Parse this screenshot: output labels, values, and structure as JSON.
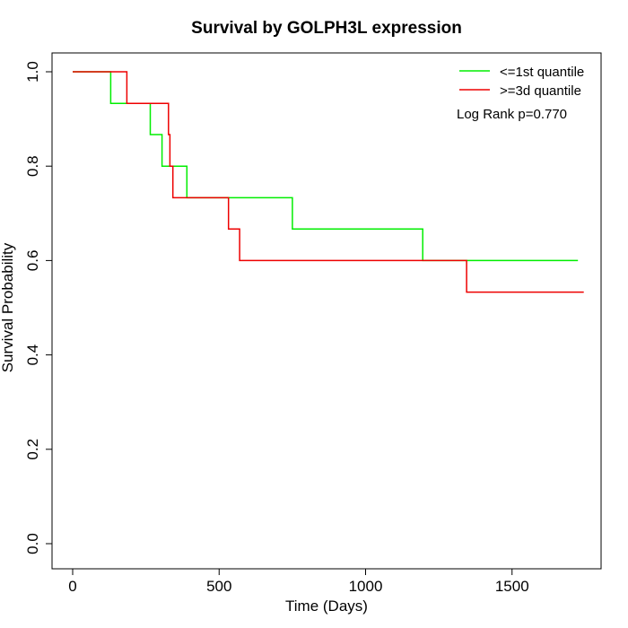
{
  "chart_data": {
    "type": "line",
    "step": true,
    "title": "Survival by GOLPH3L expression",
    "xlabel": "Time (Days)",
    "ylabel": "Survival Probability",
    "xlim": [
      0,
      1800
    ],
    "ylim": [
      0,
      1.0
    ],
    "xticks": [
      "0",
      "500",
      "1000",
      "1500"
    ],
    "xtick_values": [
      0,
      500,
      1000,
      1500
    ],
    "yticks": [
      "0.0",
      "0.2",
      "0.4",
      "0.6",
      "0.8",
      "1.0"
    ],
    "ytick_values": [
      0,
      0.2,
      0.4,
      0.6,
      0.8,
      1.0
    ],
    "grid": false,
    "legend_position": "top-right",
    "annotation": "Log Rank p=0.770",
    "series": [
      {
        "name": "<=1st quantile",
        "color": "#00ee00",
        "points": [
          [
            0,
            1.0
          ],
          [
            130,
            1.0
          ],
          [
            130,
            0.933
          ],
          [
            265,
            0.933
          ],
          [
            265,
            0.867
          ],
          [
            305,
            0.867
          ],
          [
            305,
            0.8
          ],
          [
            390,
            0.8
          ],
          [
            390,
            0.733
          ],
          [
            750,
            0.733
          ],
          [
            750,
            0.667
          ],
          [
            1195,
            0.667
          ],
          [
            1195,
            0.6
          ],
          [
            1725,
            0.6
          ]
        ]
      },
      {
        "name": ">=3d quantile",
        "color": "#ee0000",
        "points": [
          [
            0,
            1.0
          ],
          [
            185,
            1.0
          ],
          [
            185,
            0.933
          ],
          [
            327,
            0.933
          ],
          [
            327,
            0.867
          ],
          [
            332,
            0.867
          ],
          [
            332,
            0.8
          ],
          [
            342,
            0.8
          ],
          [
            342,
            0.733
          ],
          [
            532,
            0.733
          ],
          [
            532,
            0.667
          ],
          [
            570,
            0.667
          ],
          [
            570,
            0.6
          ],
          [
            1345,
            0.6
          ],
          [
            1345,
            0.533
          ],
          [
            1745,
            0.533
          ]
        ]
      }
    ]
  }
}
